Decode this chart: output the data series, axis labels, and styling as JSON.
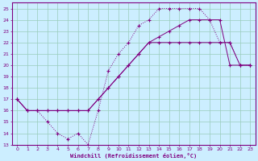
{
  "xlabel": "Windchill (Refroidissement éolien,°C)",
  "bg_color": "#cceeff",
  "grid_color": "#99ccbb",
  "line_color": "#800080",
  "xlim": [
    -0.5,
    23.5
  ],
  "ylim": [
    13,
    25.5
  ],
  "xticks": [
    0,
    1,
    2,
    3,
    4,
    5,
    6,
    7,
    8,
    9,
    10,
    11,
    12,
    13,
    14,
    15,
    16,
    17,
    18,
    19,
    20,
    21,
    22,
    23
  ],
  "yticks": [
    13,
    14,
    15,
    16,
    17,
    18,
    19,
    20,
    21,
    22,
    23,
    24,
    25
  ],
  "line1_x": [
    0,
    1,
    2,
    3,
    4,
    5,
    6,
    7,
    8,
    9,
    10,
    11,
    12,
    13,
    14,
    15,
    16,
    17,
    18,
    19,
    20,
    21,
    22,
    23
  ],
  "line1_y": [
    17,
    16,
    16,
    15,
    14,
    13.5,
    14,
    13,
    16,
    19.5,
    21,
    22,
    23.5,
    24,
    25,
    25,
    25,
    25,
    25,
    24,
    22,
    22,
    20,
    20
  ],
  "line2_x": [
    0,
    1,
    2,
    3,
    4,
    5,
    6,
    7,
    8,
    9,
    10,
    11,
    12,
    13,
    14,
    15,
    16,
    17,
    18,
    19,
    20,
    21,
    22,
    23
  ],
  "line2_y": [
    17,
    16,
    16,
    16,
    16,
    16,
    16,
    16,
    17,
    18,
    19,
    20,
    21,
    22,
    22,
    22,
    22,
    22,
    22,
    22,
    22,
    22,
    20,
    20
  ],
  "line3_x": [
    0,
    1,
    2,
    3,
    4,
    5,
    6,
    7,
    8,
    9,
    10,
    11,
    12,
    13,
    14,
    15,
    16,
    17,
    18,
    19,
    20,
    21,
    22,
    23
  ],
  "line3_y": [
    17,
    16,
    16,
    16,
    16,
    16,
    16,
    16,
    17,
    18,
    19,
    20,
    21,
    22,
    22.5,
    23,
    23.5,
    24,
    24,
    24,
    24,
    20,
    20,
    20
  ]
}
